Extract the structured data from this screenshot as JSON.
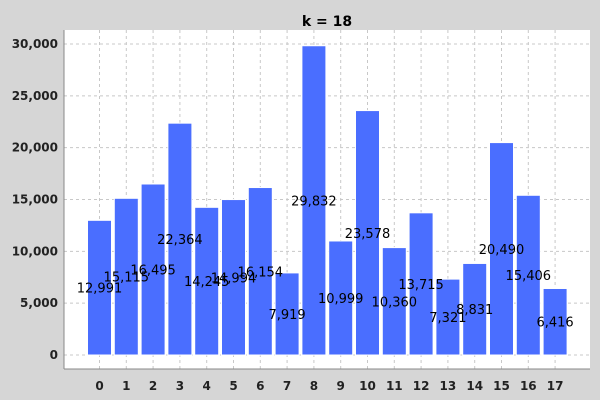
{
  "chart_data": {
    "type": "bar",
    "title": "k = 18",
    "xlabel": "",
    "ylabel": "",
    "categories": [
      "0",
      "1",
      "2",
      "3",
      "4",
      "5",
      "6",
      "7",
      "8",
      "9",
      "10",
      "11",
      "12",
      "13",
      "14",
      "15",
      "16",
      "17"
    ],
    "values": [
      12991,
      15115,
      16495,
      22364,
      14245,
      14994,
      16154,
      7919,
      29832,
      10999,
      23578,
      10360,
      13715,
      7321,
      8831,
      20490,
      15406,
      6416
    ],
    "value_labels": [
      "12,991",
      "15,115",
      "16,495",
      "22,364",
      "14,245",
      "14,994",
      "16,154",
      "7,919",
      "29,832",
      "10,999",
      "23,578",
      "10,360",
      "13,715",
      "7,321",
      "8,831",
      "20,490",
      "15,406",
      "6,416"
    ],
    "ylim": [
      0,
      31000
    ],
    "yticks": [
      0,
      5000,
      10000,
      15000,
      20000,
      25000,
      30000
    ],
    "ytick_labels": [
      "0",
      "5,000",
      "10,000",
      "15,000",
      "20,000",
      "25,000",
      "30,000"
    ],
    "grid": true,
    "colors": {
      "bar": "#4a6eff",
      "bar_stroke": "#ffffff",
      "plot_bg": "#ffffff",
      "grid": "#c8c8c8",
      "page_bg": "#d6d6d6"
    }
  }
}
